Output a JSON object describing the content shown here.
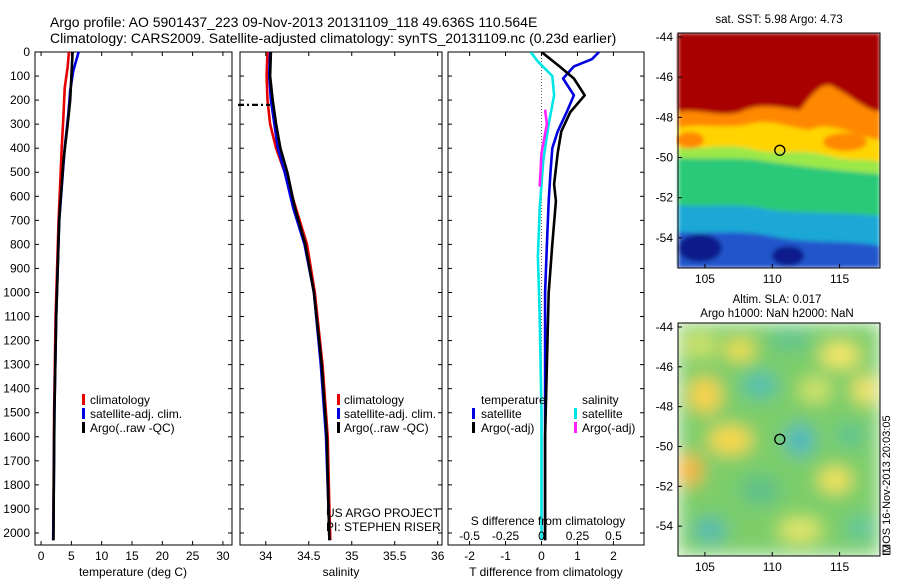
{
  "header": {
    "line1": "Argo profile: AO 5901437_223 09-Nov-2013 20131109_118 49.636S 110.564E",
    "line2": "Climatology: CARS2009. Satellite-adjusted climatology: synTS_20131109.nc (0.23d earlier)"
  },
  "colors": {
    "climatology": "#e60000",
    "satellite": "#0000e0",
    "argo": "#000000",
    "sat_salinity": "#00e6e6",
    "argo_salinity": "#ff22ff"
  },
  "chart_data": [
    {
      "type": "line",
      "id": "temperature",
      "xlabel": "temperature (deg C)",
      "xlim": [
        -1,
        31.5
      ],
      "ylim": [
        0,
        2050
      ],
      "xticks": [
        0,
        5,
        10,
        15,
        20,
        25,
        30
      ],
      "yticks": [
        0,
        100,
        200,
        300,
        400,
        500,
        600,
        700,
        800,
        900,
        1000,
        1100,
        1200,
        1300,
        1400,
        1500,
        1600,
        1700,
        1800,
        1900,
        2000
      ],
      "legend": [
        "climatology",
        "satellite-adj. clim.",
        "Argo(..raw -QC)"
      ],
      "series": [
        {
          "name": "climatology",
          "color": "#e60000",
          "points": [
            [
              4.6,
              0
            ],
            [
              4.4,
              60
            ],
            [
              3.9,
              150
            ],
            [
              3.7,
              260
            ],
            [
              3.4,
              400
            ],
            [
              2.9,
              700
            ],
            [
              2.4,
              1100
            ],
            [
              2.15,
              1500
            ],
            [
              2.1,
              1700
            ],
            [
              2.0,
              2030
            ]
          ]
        },
        {
          "name": "satellite-adj. clim.",
          "color": "#0000e0",
          "points": [
            [
              6.2,
              0
            ],
            [
              5.3,
              80
            ],
            [
              4.8,
              160
            ],
            [
              4.5,
              260
            ],
            [
              3.9,
              400
            ],
            [
              3.0,
              700
            ],
            [
              2.5,
              1100
            ],
            [
              2.2,
              1500
            ],
            [
              2.1,
              1800
            ],
            [
              2.0,
              2030
            ]
          ]
        },
        {
          "name": "Argo(..raw -QC)",
          "color": "#000000",
          "points": [
            [
              5.2,
              0
            ],
            [
              5.0,
              100
            ],
            [
              4.8,
              200
            ],
            [
              4.4,
              300
            ],
            [
              3.7,
              450
            ],
            [
              3.0,
              700
            ],
            [
              2.5,
              1100
            ],
            [
              2.2,
              1500
            ],
            [
              2.1,
              1800
            ],
            [
              2.05,
              2030
            ]
          ]
        }
      ]
    },
    {
      "type": "line",
      "id": "salinity",
      "xlabel": "salinity",
      "xlim": [
        33.7,
        36.05
      ],
      "ylim": [
        0,
        2050
      ],
      "xticks": [
        34,
        34.5,
        35,
        35.5,
        36
      ],
      "legend": [
        "climatology",
        "satellite-adj. clim.",
        "Argo(..raw -QC)"
      ],
      "annotation": [
        "US ARGO PROJECT",
        "PI: STEPHEN RISER"
      ],
      "marker_depth": 220,
      "series": [
        {
          "name": "climatology",
          "color": "#e60000",
          "points": [
            [
              34.02,
              0
            ],
            [
              34.01,
              100
            ],
            [
              34.02,
              200
            ],
            [
              34.05,
              300
            ],
            [
              34.12,
              400
            ],
            [
              34.22,
              500
            ],
            [
              34.35,
              650
            ],
            [
              34.48,
              800
            ],
            [
              34.57,
              1000
            ],
            [
              34.66,
              1300
            ],
            [
              34.72,
              1600
            ],
            [
              34.74,
              1900
            ],
            [
              34.75,
              2030
            ]
          ]
        },
        {
          "name": "satellite-adj. clim.",
          "color": "#0000e0",
          "points": [
            [
              34.05,
              0
            ],
            [
              34.04,
              100
            ],
            [
              34.06,
              200
            ],
            [
              34.1,
              300
            ],
            [
              34.14,
              400
            ],
            [
              34.22,
              500
            ],
            [
              34.32,
              650
            ],
            [
              34.45,
              800
            ],
            [
              34.56,
              1000
            ],
            [
              34.64,
              1300
            ],
            [
              34.7,
              1600
            ],
            [
              34.73,
              1900
            ],
            [
              34.74,
              2030
            ]
          ]
        },
        {
          "name": "Argo(..raw -QC)",
          "color": "#000000",
          "points": [
            [
              34.06,
              0
            ],
            [
              34.05,
              100
            ],
            [
              34.08,
              200
            ],
            [
              34.12,
              300
            ],
            [
              34.17,
              400
            ],
            [
              34.25,
              500
            ],
            [
              34.34,
              650
            ],
            [
              34.46,
              800
            ],
            [
              34.56,
              1000
            ],
            [
              34.65,
              1300
            ],
            [
              34.71,
              1600
            ],
            [
              34.73,
              1900
            ],
            [
              34.74,
              2030
            ]
          ]
        }
      ]
    },
    {
      "type": "line",
      "id": "difference",
      "xlabel": "T difference from climatology",
      "xlabel2": "S difference from climatology",
      "xlim": [
        -2.6,
        2.85
      ],
      "ylim": [
        0,
        2050
      ],
      "xticks": [
        -2,
        -1,
        0,
        1,
        2
      ],
      "xticks_s_labels": [
        "-0.5",
        "-0.25",
        "0",
        "0.25",
        "0.5"
      ],
      "legend_temp_title": "temperature",
      "legend_sal_title": "salinity",
      "legend": [
        "satellite",
        "Argo(-adj)",
        "satellite",
        "Argo(-adj)"
      ],
      "series": [
        {
          "name": "satellite",
          "color": "#0000e0",
          "points": [
            [
              1.6,
              0
            ],
            [
              1.4,
              30
            ],
            [
              0.9,
              60
            ],
            [
              0.6,
              110
            ],
            [
              0.9,
              180
            ],
            [
              0.7,
              250
            ],
            [
              0.45,
              330
            ],
            [
              0.3,
              400
            ],
            [
              0.25,
              500
            ],
            [
              0.2,
              620
            ],
            [
              0.15,
              800
            ],
            [
              0.1,
              1000
            ],
            [
              0.1,
              1300
            ],
            [
              0.1,
              1600
            ],
            [
              0.1,
              2030
            ]
          ]
        },
        {
          "name": "Argo(-adj)",
          "color": "#000000",
          "points": [
            [
              0.0,
              0
            ],
            [
              0.5,
              60
            ],
            [
              0.9,
              110
            ],
            [
              1.2,
              180
            ],
            [
              0.8,
              250
            ],
            [
              0.55,
              330
            ],
            [
              0.45,
              420
            ],
            [
              0.35,
              550
            ],
            [
              0.4,
              620
            ],
            [
              0.3,
              800
            ],
            [
              0.2,
              1000
            ],
            [
              0.15,
              1300
            ],
            [
              0.1,
              1600
            ],
            [
              0.1,
              2030
            ]
          ]
        },
        {
          "name": "satellite",
          "color": "#00e6e6",
          "points": [
            [
              -0.3,
              0
            ],
            [
              -0.1,
              40
            ],
            [
              0.3,
              100
            ],
            [
              0.35,
              180
            ],
            [
              0.2,
              300
            ],
            [
              0.05,
              450
            ],
            [
              -0.05,
              650
            ],
            [
              -0.1,
              850
            ],
            [
              -0.05,
              1100
            ],
            [
              0.0,
              1500
            ],
            [
              0.0,
              2030
            ]
          ]
        },
        {
          "name": "Argo(-adj)",
          "color": "#ff22ff",
          "points": [
            [
              0.1,
              240
            ],
            [
              0.15,
              300
            ],
            [
              0.0,
              420
            ],
            [
              -0.05,
              560
            ]
          ]
        }
      ]
    },
    {
      "type": "heatmap",
      "id": "sst-map",
      "title": "sat. SST: 5.98 Argo: 4.73",
      "xlim": [
        103,
        118
      ],
      "ylim": [
        -55.5,
        -43.8
      ],
      "xticks": [
        105,
        110,
        115
      ],
      "yticks": [
        -44,
        -46,
        -48,
        -50,
        -52,
        -54
      ],
      "marker": [
        110.56,
        -49.64
      ]
    },
    {
      "type": "heatmap",
      "id": "sla-map",
      "title_line1": "Altim. SLA: 0.017",
      "title_line2": "Argo h1000: NaN h2000: NaN",
      "xlim": [
        103,
        118
      ],
      "ylim": [
        -55.5,
        -43.8
      ],
      "xticks": [
        105,
        110,
        115
      ],
      "yticks": [
        -44,
        -46,
        -48,
        -50,
        -52,
        -54
      ],
      "marker": [
        110.56,
        -49.64
      ]
    }
  ],
  "footer": {
    "side_label": "IMOS 16-Nov-2013 20:03:05"
  }
}
